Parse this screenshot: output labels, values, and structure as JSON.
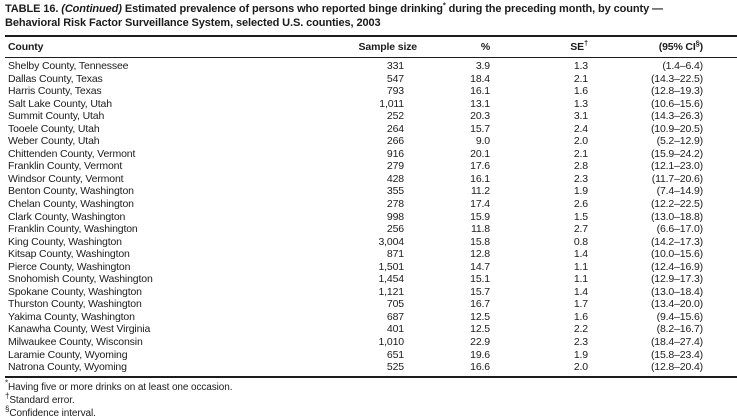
{
  "title": {
    "table_label": "TABLE 16. ",
    "continued": "(Continued)",
    "text_before_sup": " Estimated prevalence of persons who reported binge drinking",
    "sup": "*",
    "line1_after_sup": " during the preceding month, by county —",
    "line2": "Behavioral Risk Factor Surveillance System, selected U.S. counties, 2003"
  },
  "table": {
    "columns": [
      {
        "label": "County"
      },
      {
        "label": "Sample size"
      },
      {
        "label": "%"
      },
      {
        "label": "SE",
        "sup": "†"
      },
      {
        "label": "(95% CI",
        "sup": "§",
        "suffix": ")"
      }
    ],
    "rows": [
      {
        "county": "Shelby County, Tennessee",
        "sample_size": "331",
        "percent": "3.9",
        "se": "1.3",
        "ci": "(1.4–6.4)"
      },
      {
        "county": "Dallas County, Texas",
        "sample_size": "547",
        "percent": "18.4",
        "se": "2.1",
        "ci": "(14.3–22.5)"
      },
      {
        "county": "Harris County, Texas",
        "sample_size": "793",
        "percent": "16.1",
        "se": "1.6",
        "ci": "(12.8–19.3)"
      },
      {
        "county": "Salt Lake County, Utah",
        "sample_size": "1,011",
        "percent": "13.1",
        "se": "1.3",
        "ci": "(10.6–15.6)"
      },
      {
        "county": "Summit County, Utah",
        "sample_size": "252",
        "percent": "20.3",
        "se": "3.1",
        "ci": "(14.3–26.3)"
      },
      {
        "county": "Tooele County, Utah",
        "sample_size": "264",
        "percent": "15.7",
        "se": "2.4",
        "ci": "(10.9–20.5)"
      },
      {
        "county": "Weber County, Utah",
        "sample_size": "266",
        "percent": "9.0",
        "se": "2.0",
        "ci": "(5.2–12.9)"
      },
      {
        "county": "Chittenden County, Vermont",
        "sample_size": "916",
        "percent": "20.1",
        "se": "2.1",
        "ci": "(15.9–24.2)"
      },
      {
        "county": "Franklin County, Vermont",
        "sample_size": "279",
        "percent": "17.6",
        "se": "2.8",
        "ci": "(12.1–23.0)"
      },
      {
        "county": "Windsor County, Vermont",
        "sample_size": "428",
        "percent": "16.1",
        "se": "2.3",
        "ci": "(11.7–20.6)"
      },
      {
        "county": "Benton County, Washington",
        "sample_size": "355",
        "percent": "11.2",
        "se": "1.9",
        "ci": "(7.4–14.9)"
      },
      {
        "county": "Chelan County, Washington",
        "sample_size": "278",
        "percent": "17.4",
        "se": "2.6",
        "ci": "(12.2–22.5)"
      },
      {
        "county": "Clark County, Washington",
        "sample_size": "998",
        "percent": "15.9",
        "se": "1.5",
        "ci": "(13.0–18.8)"
      },
      {
        "county": "Franklin County, Washington",
        "sample_size": "256",
        "percent": "11.8",
        "se": "2.7",
        "ci": "(6.6–17.0)"
      },
      {
        "county": "King County, Washington",
        "sample_size": "3,004",
        "percent": "15.8",
        "se": "0.8",
        "ci": "(14.2–17.3)"
      },
      {
        "county": "Kitsap County, Washington",
        "sample_size": "871",
        "percent": "12.8",
        "se": "1.4",
        "ci": "(10.0–15.6)"
      },
      {
        "county": "Pierce County, Washington",
        "sample_size": "1,501",
        "percent": "14.7",
        "se": "1.1",
        "ci": "(12.4–16.9)"
      },
      {
        "county": "Snohomish County, Washington",
        "sample_size": "1,454",
        "percent": "15.1",
        "se": "1.1",
        "ci": "(12.9–17.3)"
      },
      {
        "county": "Spokane County, Washington",
        "sample_size": "1,121",
        "percent": "15.7",
        "se": "1.4",
        "ci": "(13.0–18.4)"
      },
      {
        "county": "Thurston County, Washington",
        "sample_size": "705",
        "percent": "16.7",
        "se": "1.7",
        "ci": "(13.4–20.0)"
      },
      {
        "county": "Yakima County, Washington",
        "sample_size": "687",
        "percent": "12.5",
        "se": "1.6",
        "ci": "(9.4–15.6)"
      },
      {
        "county": "Kanawha County, West Virginia",
        "sample_size": "401",
        "percent": "12.5",
        "se": "2.2",
        "ci": "(8.2–16.7)"
      },
      {
        "county": "Milwaukee County, Wisconsin",
        "sample_size": "1,010",
        "percent": "22.9",
        "se": "2.3",
        "ci": "(18.4–27.4)"
      },
      {
        "county": "Laramie County, Wyoming",
        "sample_size": "651",
        "percent": "19.6",
        "se": "1.9",
        "ci": "(15.8–23.4)"
      },
      {
        "county": "Natrona County, Wyoming",
        "sample_size": "525",
        "percent": "16.6",
        "se": "2.0",
        "ci": "(12.8–20.4)"
      }
    ]
  },
  "footnotes": [
    {
      "symbol": "*",
      "text": "Having five or more drinks on at least one occasion."
    },
    {
      "symbol": "†",
      "text": "Standard error."
    },
    {
      "symbol": "§",
      "text": "Confidence interval."
    }
  ]
}
